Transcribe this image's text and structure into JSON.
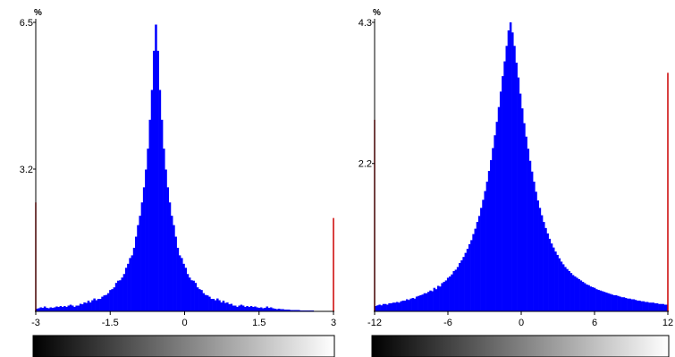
{
  "chart_data": [
    {
      "type": "bar",
      "ylabel": "%",
      "xlim": [
        -3,
        3
      ],
      "ylim": [
        0,
        6.5
      ],
      "x_ticks": [
        "-3",
        "-1.5",
        "0",
        "1.5",
        "3"
      ],
      "x_tick_values": [
        -3,
        -1.5,
        0,
        1.5,
        3
      ],
      "y_ticks": [
        "6.5",
        "3.2"
      ],
      "y_tick_values": [
        6.5,
        3.2
      ],
      "bar_color": "#0000ff",
      "clip_marker_color": "#cc0000",
      "clip_markers": [
        {
          "x": -3,
          "value": 2.45
        },
        {
          "x": 3,
          "value": 2.1
        }
      ],
      "bins": {
        "start": -3,
        "width": 0.04,
        "values": [
          0.06,
          0.07,
          0.09,
          0.08,
          0.11,
          0.08,
          0.07,
          0.09,
          0.08,
          0.09,
          0.11,
          0.1,
          0.12,
          0.1,
          0.12,
          0.1,
          0.13,
          0.15,
          0.13,
          0.1,
          0.13,
          0.13,
          0.17,
          0.16,
          0.2,
          0.19,
          0.24,
          0.2,
          0.25,
          0.29,
          0.25,
          0.28,
          0.28,
          0.33,
          0.36,
          0.37,
          0.41,
          0.48,
          0.5,
          0.54,
          0.64,
          0.69,
          0.7,
          0.76,
          0.84,
          0.98,
          1.07,
          1.2,
          1.26,
          1.43,
          1.68,
          1.94,
          2.15,
          2.45,
          2.79,
          3.19,
          3.66,
          4.31,
          4.98,
          5.86,
          6.45,
          5.86,
          4.98,
          4.31,
          3.66,
          3.19,
          2.79,
          2.45,
          2.15,
          1.94,
          1.68,
          1.43,
          1.26,
          1.2,
          1.07,
          0.98,
          0.84,
          0.76,
          0.7,
          0.69,
          0.64,
          0.54,
          0.5,
          0.48,
          0.41,
          0.37,
          0.36,
          0.33,
          0.28,
          0.28,
          0.25,
          0.29,
          0.25,
          0.2,
          0.24,
          0.19,
          0.2,
          0.16,
          0.17,
          0.13,
          0.13,
          0.1,
          0.13,
          0.15,
          0.13,
          0.1,
          0.12,
          0.1,
          0.12,
          0.1,
          0.11,
          0.09,
          0.08,
          0.09,
          0.07,
          0.08,
          0.11,
          0.08,
          0.09,
          0.07,
          0.06,
          0.05,
          0.06,
          0.05,
          0.05,
          0.04,
          0.04,
          0.04,
          0.03,
          0.03,
          0.03,
          0.03,
          0.03,
          0.02,
          0.02,
          0.02,
          0.02,
          0.02,
          0.02,
          0.02,
          0.01,
          0.01,
          0.01,
          0.01,
          0.01,
          0.01,
          0.01,
          0.01
        ]
      },
      "colorbar": {
        "from": "#000000",
        "to": "#ffffff"
      }
    },
    {
      "type": "bar",
      "ylabel": "%",
      "xlim": [
        -12,
        12
      ],
      "ylim": [
        0,
        4.3
      ],
      "x_ticks": [
        "-12",
        "-6",
        "0",
        "6",
        "12"
      ],
      "x_tick_values": [
        -12,
        -6,
        0,
        6,
        12
      ],
      "y_ticks": [
        "4.3",
        "2.2"
      ],
      "y_tick_values": [
        4.3,
        2.2
      ],
      "bar_color": "#0000ff",
      "clip_marker_color": "#cc0000",
      "clip_markers": [
        {
          "x": -12,
          "value": 2.85
        },
        {
          "x": 12,
          "value": 3.55
        }
      ],
      "bins": {
        "start": -12,
        "width": 0.16,
        "values": [
          0.08,
          0.09,
          0.1,
          0.09,
          0.11,
          0.11,
          0.1,
          0.12,
          0.12,
          0.13,
          0.13,
          0.14,
          0.13,
          0.15,
          0.16,
          0.16,
          0.18,
          0.17,
          0.19,
          0.2,
          0.19,
          0.22,
          0.23,
          0.24,
          0.25,
          0.27,
          0.27,
          0.29,
          0.31,
          0.3,
          0.35,
          0.33,
          0.38,
          0.37,
          0.42,
          0.44,
          0.46,
          0.5,
          0.52,
          0.55,
          0.6,
          0.62,
          0.66,
          0.72,
          0.76,
          0.81,
          0.87,
          0.93,
          1.0,
          1.06,
          1.15,
          1.23,
          1.33,
          1.42,
          1.54,
          1.66,
          1.79,
          1.93,
          2.09,
          2.25,
          2.43,
          2.62,
          2.82,
          3.04,
          3.27,
          3.5,
          3.72,
          3.95,
          4.18,
          4.3,
          4.15,
          3.95,
          3.7,
          3.48,
          3.24,
          3.02,
          2.8,
          2.6,
          2.42,
          2.24,
          2.08,
          1.93,
          1.78,
          1.65,
          1.54,
          1.43,
          1.33,
          1.24,
          1.16,
          1.08,
          1.01,
          0.95,
          0.89,
          0.84,
          0.79,
          0.74,
          0.7,
          0.66,
          0.63,
          0.6,
          0.57,
          0.54,
          0.52,
          0.5,
          0.48,
          0.46,
          0.44,
          0.42,
          0.4,
          0.39,
          0.37,
          0.36,
          0.35,
          0.33,
          0.32,
          0.31,
          0.3,
          0.29,
          0.28,
          0.27,
          0.26,
          0.25,
          0.24,
          0.24,
          0.23,
          0.22,
          0.21,
          0.21,
          0.2,
          0.19,
          0.19,
          0.18,
          0.18,
          0.17,
          0.16,
          0.16,
          0.15,
          0.15,
          0.14,
          0.14,
          0.13,
          0.13,
          0.13,
          0.12,
          0.12,
          0.11,
          0.11,
          0.11,
          0.1,
          0.1
        ]
      },
      "colorbar": {
        "from": "#000000",
        "to": "#ffffff"
      }
    }
  ]
}
